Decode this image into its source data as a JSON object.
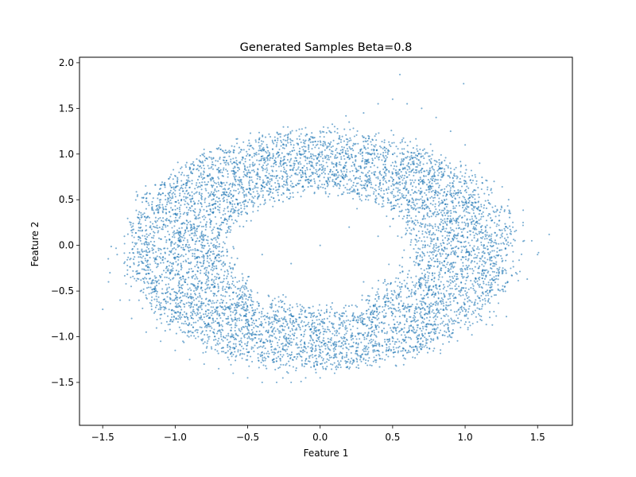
{
  "chart_data": {
    "type": "scatter",
    "title": "Generated Samples Beta=0.8",
    "xlabel": "Feature 1",
    "ylabel": "Feature 2",
    "xlim": [
      -1.66,
      1.74
    ],
    "ylim": [
      -1.97,
      2.06
    ],
    "xticks": [
      -1.5,
      -1.0,
      -0.5,
      0.0,
      0.5,
      1.0,
      1.5
    ],
    "xtick_labels": [
      "−1.5",
      "−1.0",
      "−0.5",
      "0.0",
      "0.5",
      "1.0",
      "1.5"
    ],
    "yticks": [
      -1.5,
      -1.0,
      -0.5,
      0.0,
      0.5,
      1.0,
      1.5,
      2.0
    ],
    "ytick_labels": [
      "−1.5",
      "−1.0",
      "−0.5",
      "0.0",
      "0.5",
      "1.0",
      "1.5",
      "2.0"
    ],
    "grid": false,
    "legend": "none",
    "point_color": "#1f77b4",
    "point_alpha": 0.6,
    "series": [
      {
        "values_description": "approximately 8000 samples forming a tilted elliptical ring, center near (0.0, -0.05)",
        "x": [
          -1.5,
          -1.46,
          -1.4,
          -1.35,
          -1.3,
          -1.25,
          -1.2,
          -1.1,
          -1.0,
          -0.9,
          -0.8,
          -0.7,
          -0.6,
          -0.5,
          -0.4,
          -0.3,
          -0.2,
          -0.1,
          0.0,
          0.1,
          0.2,
          0.3,
          0.4,
          0.5,
          0.6,
          0.7,
          0.8,
          0.9,
          1.0,
          1.1,
          1.2,
          1.3,
          1.4,
          1.46,
          1.5,
          1.58,
          -1.45,
          -1.38,
          -1.3,
          -1.2,
          -1.1,
          -1.0,
          -0.9,
          -0.8,
          -0.7,
          -0.6,
          -0.5,
          -0.4,
          -0.3,
          -0.2,
          -0.1,
          0.0,
          0.1,
          0.2,
          0.3,
          0.4,
          0.5,
          0.6,
          0.7,
          0.8,
          0.9,
          1.0,
          1.1,
          1.2,
          1.3,
          1.35,
          0.0,
          0.2,
          -0.2,
          0.4,
          -0.4,
          0.6,
          0.8,
          0.3,
          -0.6,
          0.9,
          0.55,
          0.99
        ],
        "y": [
          -0.7,
          -0.4,
          -0.1,
          0.1,
          0.2,
          0.3,
          0.4,
          0.5,
          0.6,
          0.7,
          0.8,
          0.85,
          0.95,
          1.0,
          1.05,
          1.1,
          1.15,
          1.2,
          1.25,
          1.3,
          1.35,
          1.45,
          1.55,
          1.6,
          1.55,
          1.5,
          1.4,
          1.25,
          1.1,
          0.9,
          0.7,
          0.5,
          0.25,
          0.05,
          -0.1,
          0.12,
          -0.3,
          -0.6,
          -0.8,
          -0.95,
          -1.05,
          -1.15,
          -1.25,
          -1.3,
          -1.35,
          -1.4,
          -1.45,
          -1.5,
          -1.5,
          -1.5,
          -1.45,
          -1.45,
          -1.4,
          -1.35,
          -1.25,
          -1.15,
          -1.05,
          -0.95,
          -0.85,
          -0.75,
          -0.65,
          -0.5,
          -0.35,
          -0.2,
          0.0,
          -0.3,
          0.0,
          0.2,
          -0.2,
          0.1,
          -0.1,
          0.3,
          0.0,
          -0.4,
          0.4,
          -0.2,
          1.87,
          1.77
        ]
      }
    ]
  }
}
